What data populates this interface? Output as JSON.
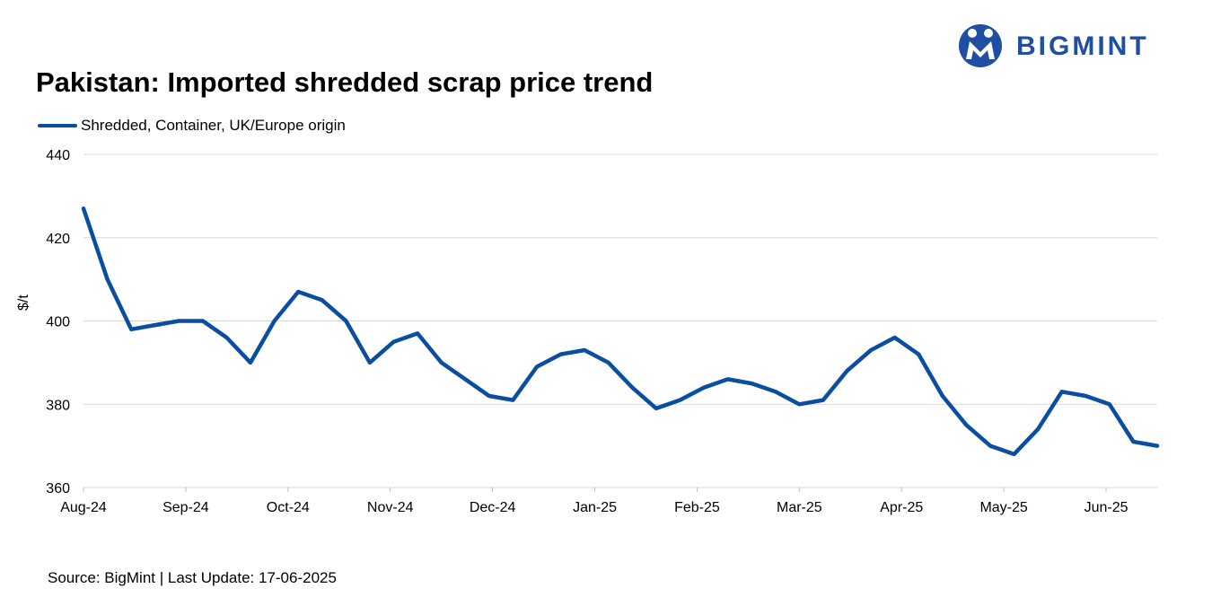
{
  "brand": {
    "logo_text": "BIGMINT",
    "logo_color": "#1f4fa3"
  },
  "chart_data": {
    "type": "line",
    "title": "Pakistan: Imported shredded scrap price trend",
    "ylabel": "$/t",
    "xlabel": "",
    "ylim": [
      360,
      440
    ],
    "yticks": [
      360,
      380,
      400,
      420,
      440
    ],
    "grid": true,
    "legend_position": "top-left",
    "x_tick_labels": [
      "Aug-24",
      "Sep-24",
      "Oct-24",
      "Nov-24",
      "Dec-24",
      "Jan-25",
      "Feb-25",
      "Mar-25",
      "Apr-25",
      "May-25",
      "Jun-25"
    ],
    "series": [
      {
        "name": "Shredded, Container, UK/Europe origin",
        "color": "#0a4ea2",
        "values": [
          427,
          410,
          398,
          399,
          400,
          400,
          396,
          390,
          400,
          407,
          405,
          400,
          390,
          395,
          397,
          390,
          386,
          382,
          381,
          389,
          392,
          393,
          390,
          384,
          379,
          381,
          384,
          386,
          385,
          383,
          380,
          381,
          388,
          393,
          396,
          392,
          382,
          375,
          370,
          368,
          374,
          383,
          382,
          380,
          371,
          370
        ]
      }
    ]
  },
  "footer": {
    "source": "Source: BigMint | Last Update: 17-06-2025"
  }
}
